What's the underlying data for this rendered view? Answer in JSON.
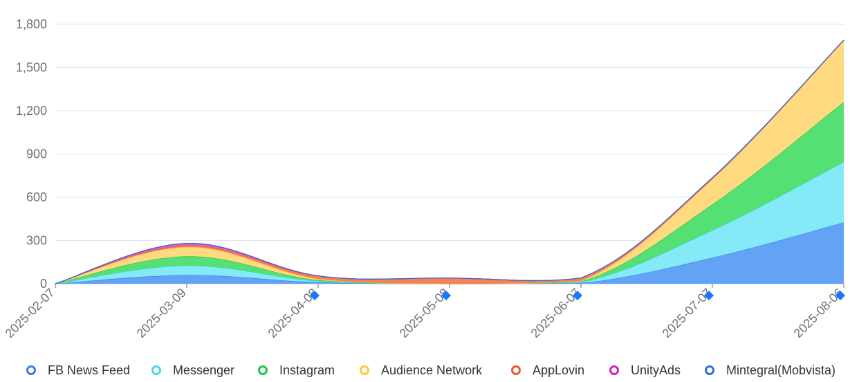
{
  "chart_data": {
    "type": "area",
    "stacked": true,
    "title": "",
    "xlabel": "",
    "ylabel": "",
    "ylim": [
      0,
      1800
    ],
    "y_ticks": [
      "0",
      "300",
      "600",
      "900",
      "1,200",
      "1,500",
      "1,800"
    ],
    "y_tick_values": [
      0,
      300,
      600,
      900,
      1200,
      1500,
      1800
    ],
    "x": [
      "2025-02-07",
      "2025-03-09",
      "2025-04-08",
      "2025-05-08",
      "2025-06-07",
      "2025-07-07",
      "2025-08-06"
    ],
    "x_tick_labels": [
      "2025-02-07",
      "2025-03-09",
      "2025-04-08",
      "2025-05-08",
      "2025-06-07",
      "2025-07-07",
      "2025-08-06"
    ],
    "markers_on_x": [
      "2025-04-08",
      "2025-05-08",
      "2025-06-07",
      "2025-07-07",
      "2025-08-06"
    ],
    "marker_color": "#1677ff",
    "series": [
      {
        "name": "FB News Feed",
        "color": "#3a7be0",
        "fill": "#5c9df5",
        "values": [
          0,
          60,
          10,
          0,
          5,
          180,
          425
        ]
      },
      {
        "name": "Messenger",
        "color": "#4fd8e8",
        "fill": "#7ee9f8",
        "values": [
          0,
          65,
          8,
          0,
          5,
          190,
          420
        ]
      },
      {
        "name": "Instagram",
        "color": "#1cc44a",
        "fill": "#4cde6c",
        "values": [
          0,
          65,
          7,
          0,
          5,
          180,
          415
        ]
      },
      {
        "name": "Audience Network",
        "color": "#ffc73d",
        "fill": "#ffd87a",
        "values": [
          0,
          65,
          8,
          0,
          5,
          175,
          425
        ]
      },
      {
        "name": "AppLovin",
        "color": "#f05a28",
        "fill": "#f57a4e",
        "values": [
          0,
          10,
          20,
          40,
          20,
          10,
          5
        ]
      },
      {
        "name": "UnityAds",
        "color": "#d020b8",
        "fill": "#e455c4",
        "values": [
          0,
          15,
          2,
          0,
          0,
          0,
          0
        ]
      },
      {
        "name": "Mintegral(Mobvista)",
        "color": "#2b6fd6",
        "fill": "#3a7be0",
        "values": [
          0,
          0,
          0,
          0,
          0,
          0,
          0
        ]
      }
    ]
  },
  "legend": {
    "items": [
      {
        "label": "FB News Feed",
        "color": "#3a7be0"
      },
      {
        "label": "Messenger",
        "color": "#4fd8e8"
      },
      {
        "label": "Instagram",
        "color": "#1cc44a"
      },
      {
        "label": "Audience Network",
        "color": "#ffc73d"
      },
      {
        "label": "AppLovin",
        "color": "#f05a28"
      },
      {
        "label": "UnityAds",
        "color": "#d020b8"
      },
      {
        "label": "Mintegral(Mobvista)",
        "color": "#2b6fd6"
      }
    ]
  }
}
